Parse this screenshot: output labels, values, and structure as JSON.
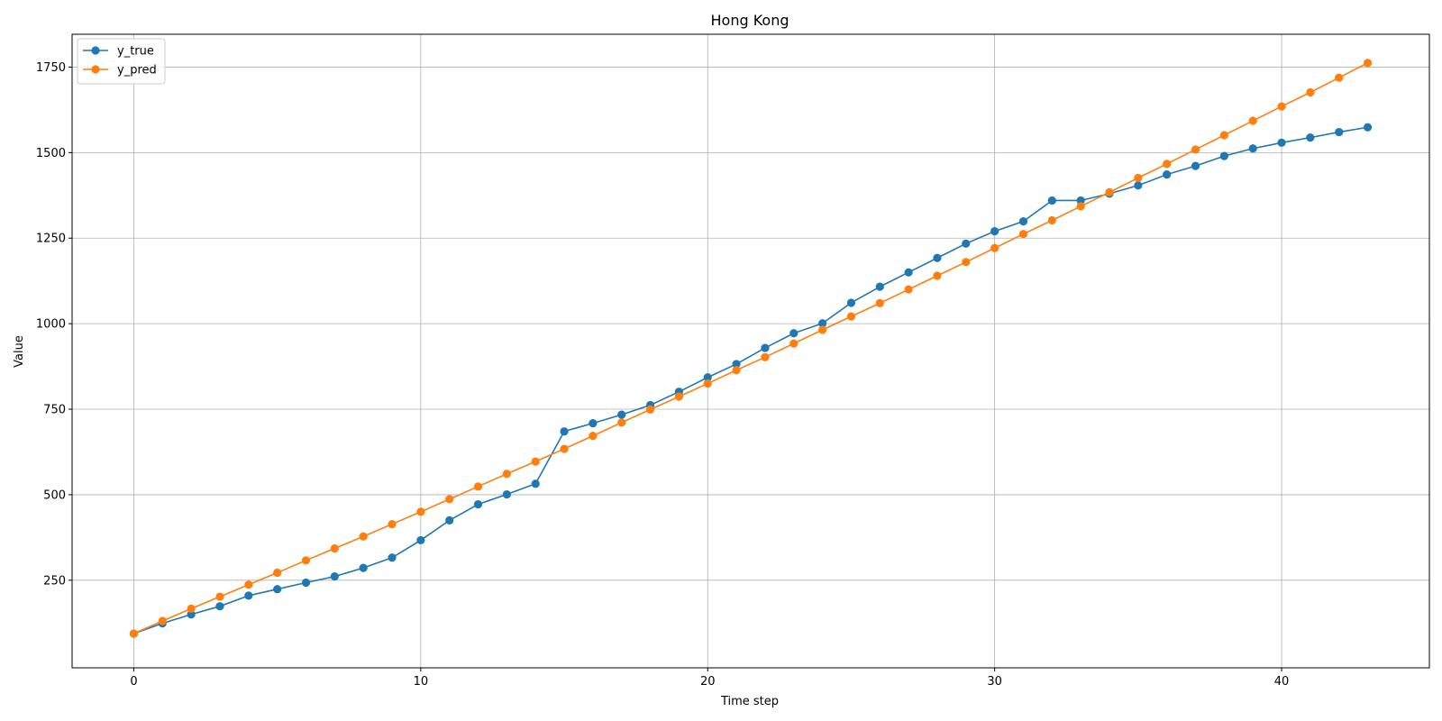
{
  "chart_data": {
    "type": "line",
    "title": "Hong Kong",
    "xlabel": "Time step",
    "ylabel": "Value",
    "xlim": [
      -2.15,
      45.15
    ],
    "ylim": [
      -6,
      1846
    ],
    "xticks": [
      0,
      10,
      20,
      30,
      40
    ],
    "yticks": [
      250,
      500,
      750,
      1000,
      1250,
      1500,
      1750
    ],
    "grid": true,
    "legend_position": "top-left",
    "x": [
      0,
      1,
      2,
      3,
      4,
      5,
      6,
      7,
      8,
      9,
      10,
      11,
      12,
      13,
      14,
      15,
      16,
      17,
      18,
      19,
      20,
      21,
      22,
      23,
      24,
      25,
      26,
      27,
      28,
      29,
      30,
      31,
      32,
      33,
      34,
      35,
      36,
      37,
      38,
      39,
      40,
      41,
      42,
      43
    ],
    "series": [
      {
        "name": "y_true",
        "color": "#1f77b4",
        "values": [
          94,
          124,
          150,
          174,
          205,
          224,
          243,
          261,
          286,
          316,
          367,
          425,
          472,
          501,
          532,
          685,
          709,
          734,
          762,
          801,
          843,
          882,
          929,
          972,
          1001,
          1061,
          1108,
          1150,
          1192,
          1234,
          1270,
          1299,
          1360,
          1360,
          1380,
          1404,
          1436,
          1461,
          1490,
          1512,
          1529,
          1544,
          1560,
          1574
        ]
      },
      {
        "name": "y_pred",
        "color": "#ff7f0e",
        "values": [
          94,
          131,
          167,
          202,
          237,
          272,
          308,
          343,
          378,
          414,
          450,
          487,
          524,
          561,
          597,
          634,
          672,
          711,
          749,
          787,
          825,
          864,
          902,
          942,
          982,
          1021,
          1060,
          1100,
          1140,
          1180,
          1221,
          1262,
          1302,
          1343,
          1384,
          1426,
          1467,
          1509,
          1551,
          1593,
          1635,
          1676,
          1719,
          1762
        ]
      }
    ]
  }
}
